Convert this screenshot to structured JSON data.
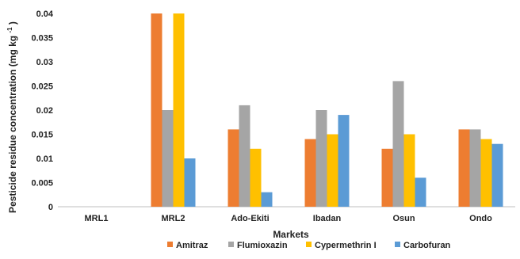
{
  "chart_data": {
    "type": "bar",
    "xlabel": "Markets",
    "ylabel": "Pesticide residue concentration (mg kg",
    "ylabel_sup": "-1",
    "ylabel_close": ")",
    "ylim": [
      0,
      0.04
    ],
    "yticks": [
      "0",
      "0.005",
      "0.01",
      "0.015",
      "0.02",
      "0.025",
      "0.03",
      "0.035",
      "0.04"
    ],
    "ytick_values": [
      0,
      0.005,
      0.01,
      0.015,
      0.02,
      0.025,
      0.03,
      0.035,
      0.04
    ],
    "categories": [
      "MRL1",
      "MRL2",
      "Ado-Ekiti",
      "Ibadan",
      "Osun",
      "Ondo"
    ],
    "series": [
      {
        "name": "Amitraz",
        "color": "#ED7D31",
        "values": [
          0,
          0.04,
          0.016,
          0.014,
          0.012,
          0.016
        ]
      },
      {
        "name": "Flumioxazin",
        "color": "#A5A5A5",
        "values": [
          0,
          0.02,
          0.021,
          0.02,
          0.026,
          0.016
        ]
      },
      {
        "name": "Cypermethrin I",
        "color": "#FFC000",
        "values": [
          0,
          0.04,
          0.012,
          0.015,
          0.015,
          0.014
        ]
      },
      {
        "name": "Carbofuran",
        "color": "#5B9BD5",
        "values": [
          0,
          0.01,
          0.003,
          0.019,
          0.006,
          0.013
        ]
      }
    ],
    "legend_position": "bottom",
    "grid": false
  }
}
